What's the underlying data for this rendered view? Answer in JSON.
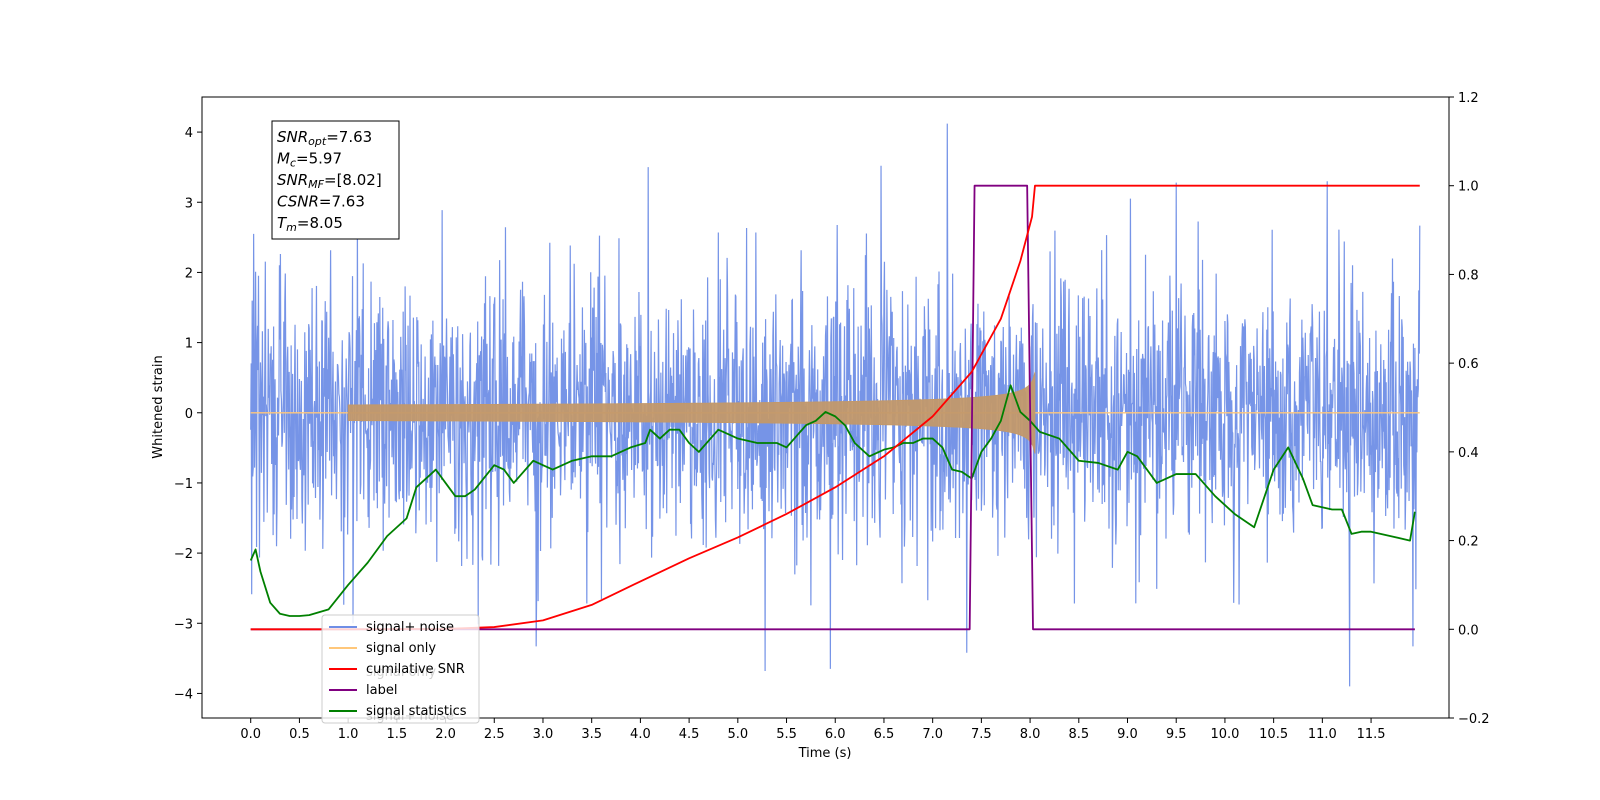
{
  "chart_data": {
    "type": "line",
    "title": "",
    "xlabel": "Time (s)",
    "ylabel": "Whitened strain",
    "ylabel_right": "",
    "xlim": [
      -0.5,
      12.3
    ],
    "ylim": [
      -4.35,
      4.5
    ],
    "ylim_right": [
      -0.2,
      1.2
    ],
    "x_ticks": [
      0.0,
      0.5,
      1.0,
      1.5,
      2.0,
      2.5,
      3.0,
      3.5,
      4.0,
      4.5,
      5.0,
      5.5,
      6.0,
      6.5,
      7.0,
      7.5,
      8.0,
      8.5,
      9.0,
      9.5,
      10.0,
      10.5,
      11.0,
      11.5
    ],
    "x_tick_labels": [
      "0.0",
      "0.5",
      "1.0",
      "1.5",
      "2.0",
      "2.5",
      "3.0",
      "3.5",
      "4.0",
      "4.5",
      "5.0",
      "5.5",
      "6.0",
      "6.5",
      "7.0",
      "7.5",
      "8.0",
      "8.5",
      "9.0",
      "9.5",
      "10.0",
      "10.5",
      "11.0",
      "11.5"
    ],
    "y_ticks": [
      -4,
      -3,
      -2,
      -1,
      0,
      1,
      2,
      3,
      4
    ],
    "y_tick_labels": [
      "−4",
      "−3",
      "−2",
      "−1",
      "0",
      "1",
      "2",
      "3",
      "4"
    ],
    "y_ticks_right": [
      -0.2,
      0.0,
      0.2,
      0.4,
      0.6,
      0.8,
      1.0,
      1.2
    ],
    "y_tick_labels_right": [
      "−0.2",
      "0.0",
      "0.2",
      "0.4",
      "0.6",
      "0.8",
      "1.0",
      "1.2"
    ],
    "grid": false,
    "legend_position": "bottom-left",
    "legend": [
      {
        "label": "signal+ noise",
        "color": "#6f8ee6"
      },
      {
        "label": "signal only",
        "color": "#ffc77a"
      },
      {
        "label": "cumilative SNR",
        "color": "#ff0000"
      },
      {
        "label": "label",
        "color": "#800080"
      },
      {
        "label": "signal statistics",
        "color": "#008000"
      }
    ],
    "legend_ghost_text": [
      "signal only",
      "signal+ noise"
    ],
    "annotation": [
      {
        "base": "SNR",
        "sub": "opt",
        "value": "=7.63"
      },
      {
        "base": "M",
        "sub": "c",
        "value": "=5.97"
      },
      {
        "base": "SNR",
        "sub": "MF",
        "value": "=[8.02]"
      },
      {
        "base": "CSNR",
        "sub": "",
        "value": "=7.63"
      },
      {
        "base": "T",
        "sub": "m",
        "value": "=8.05"
      }
    ],
    "series": [
      {
        "name": "signal+ noise",
        "axis": "left",
        "color": "#6f8ee6",
        "x_range": [
          0.0,
          12.0
        ],
        "noise_std": 0.95,
        "peaks": [
          {
            "x": 0.03,
            "y": 2.55
          },
          {
            "x": 1.05,
            "y": -3.0
          },
          {
            "x": 2.93,
            "y": -3.33
          },
          {
            "x": 4.08,
            "y": 3.5
          },
          {
            "x": 5.28,
            "y": -3.68
          },
          {
            "x": 5.95,
            "y": -3.65
          },
          {
            "x": 6.47,
            "y": 3.52
          },
          {
            "x": 7.15,
            "y": 4.12
          },
          {
            "x": 7.35,
            "y": -3.42
          },
          {
            "x": 9.5,
            "y": 3.28
          },
          {
            "x": 11.05,
            "y": 3.3
          },
          {
            "x": 11.28,
            "y": -3.9
          },
          {
            "x": 11.93,
            "y": -3.33
          }
        ]
      },
      {
        "name": "signal only",
        "axis": "left",
        "color": "#ffc77a",
        "chirp_start": 1.0,
        "chirp_end": 8.05,
        "amplitude_at_merger": 0.58
      },
      {
        "name": "cumilative SNR",
        "axis": "right",
        "color": "#ff0000",
        "x": [
          0.0,
          1.0,
          2.0,
          2.5,
          3.0,
          3.5,
          4.0,
          4.5,
          5.0,
          5.5,
          6.0,
          6.5,
          7.0,
          7.4,
          7.7,
          7.9,
          8.02,
          8.05,
          12.0
        ],
        "y": [
          0.0,
          0.0,
          0.001,
          0.005,
          0.02,
          0.055,
          0.108,
          0.16,
          0.207,
          0.26,
          0.32,
          0.39,
          0.48,
          0.58,
          0.7,
          0.83,
          0.93,
          1.0,
          1.0
        ]
      },
      {
        "name": "label",
        "axis": "right",
        "color": "#800080",
        "x": [
          0.0,
          7.38,
          7.43,
          7.97,
          8.03,
          11.95
        ],
        "y": [
          0.0,
          0.0,
          1.0,
          1.0,
          0.0,
          0.0
        ]
      },
      {
        "name": "signal statistics",
        "axis": "right",
        "color": "#008000",
        "x": [
          0.0,
          0.05,
          0.1,
          0.2,
          0.3,
          0.4,
          0.5,
          0.6,
          0.8,
          1.0,
          1.2,
          1.4,
          1.6,
          1.7,
          1.85,
          1.9,
          2.0,
          2.1,
          2.2,
          2.3,
          2.5,
          2.6,
          2.7,
          2.9,
          3.0,
          3.1,
          3.3,
          3.5,
          3.7,
          3.9,
          4.05,
          4.1,
          4.2,
          4.3,
          4.4,
          4.5,
          4.6,
          4.8,
          4.9,
          5.0,
          5.2,
          5.4,
          5.5,
          5.7,
          5.8,
          5.9,
          6.0,
          6.1,
          6.2,
          6.35,
          6.5,
          6.6,
          6.7,
          6.8,
          6.9,
          7.0,
          7.1,
          7.2,
          7.3,
          7.4,
          7.5,
          7.6,
          7.7,
          7.8,
          7.9,
          8.0,
          8.1,
          8.3,
          8.5,
          8.7,
          8.9,
          9.0,
          9.1,
          9.3,
          9.5,
          9.7,
          9.9,
          10.1,
          10.3,
          10.5,
          10.65,
          10.8,
          10.9,
          11.1,
          11.2,
          11.3,
          11.4,
          11.5,
          11.7,
          11.9,
          11.95
        ],
        "y": [
          0.155,
          0.18,
          0.13,
          0.06,
          0.035,
          0.03,
          0.03,
          0.032,
          0.045,
          0.1,
          0.15,
          0.21,
          0.25,
          0.32,
          0.35,
          0.36,
          0.33,
          0.3,
          0.3,
          0.315,
          0.37,
          0.36,
          0.33,
          0.38,
          0.37,
          0.36,
          0.38,
          0.39,
          0.39,
          0.41,
          0.42,
          0.45,
          0.43,
          0.45,
          0.45,
          0.42,
          0.4,
          0.45,
          0.44,
          0.43,
          0.42,
          0.42,
          0.41,
          0.46,
          0.47,
          0.49,
          0.48,
          0.46,
          0.42,
          0.39,
          0.405,
          0.41,
          0.42,
          0.42,
          0.43,
          0.43,
          0.41,
          0.36,
          0.355,
          0.34,
          0.4,
          0.43,
          0.47,
          0.55,
          0.49,
          0.47,
          0.445,
          0.43,
          0.38,
          0.375,
          0.36,
          0.4,
          0.39,
          0.33,
          0.35,
          0.35,
          0.3,
          0.26,
          0.23,
          0.36,
          0.41,
          0.34,
          0.28,
          0.27,
          0.27,
          0.215,
          0.22,
          0.22,
          0.21,
          0.2,
          0.265
        ]
      }
    ]
  }
}
